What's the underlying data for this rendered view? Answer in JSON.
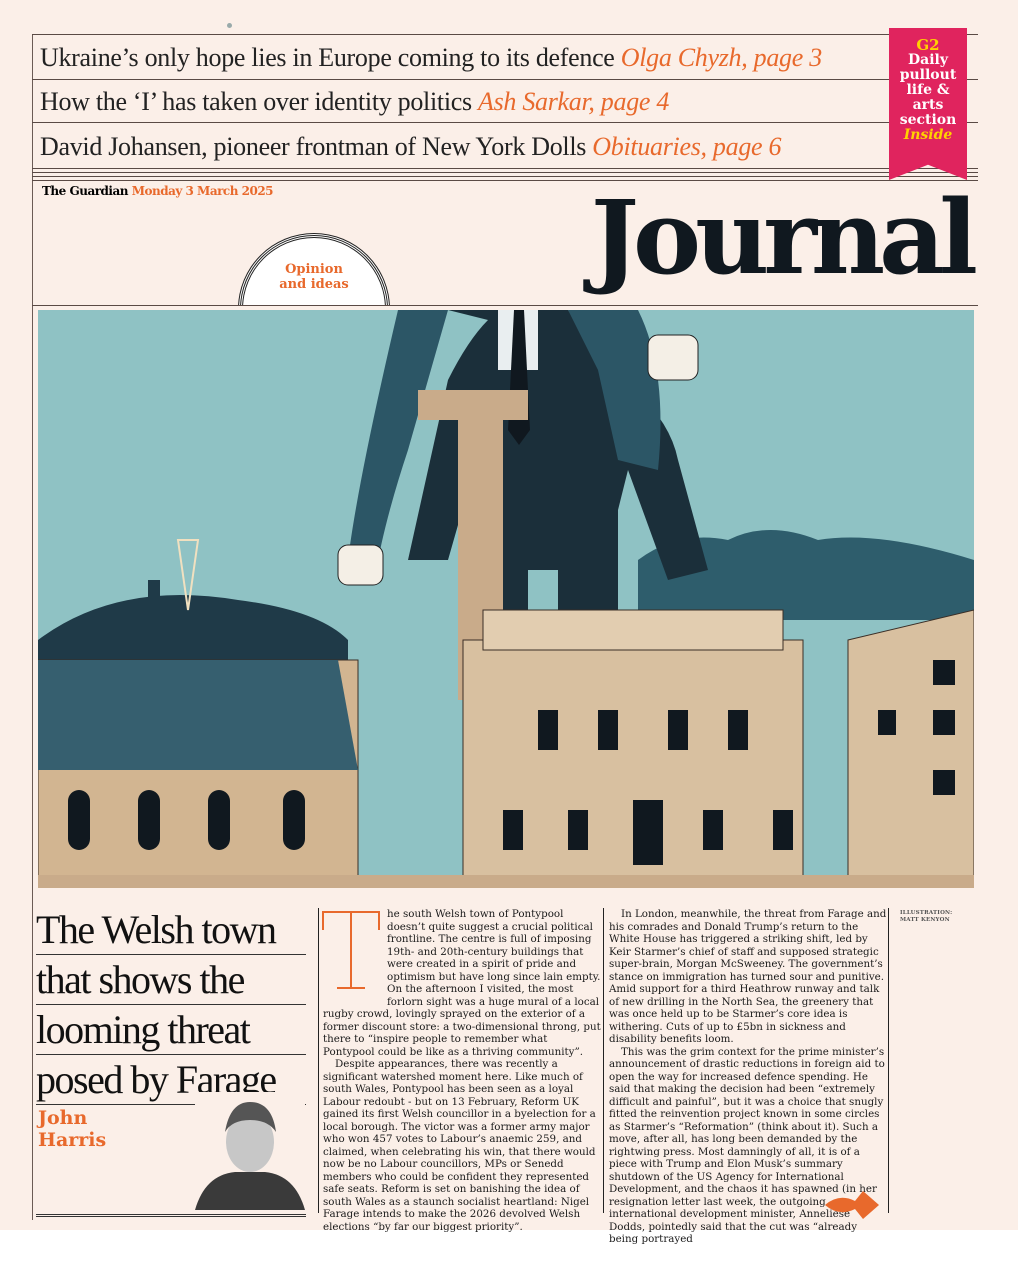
{
  "teasers": [
    {
      "text": "Ukraine’s only hope lies in Europe coming to its defence ",
      "ref": "Olga Chyzh, page 3"
    },
    {
      "text": "How the ‘I’ has taken over identity politics ",
      "ref": "Ash Sarkar, page 4"
    },
    {
      "text": "David Johansen, pioneer frontman of New York Dolls ",
      "ref": "Obituaries, page 6"
    }
  ],
  "ribbon": {
    "g2": "G2",
    "lines": [
      "Daily",
      "pullout",
      "life &",
      "arts",
      "section"
    ],
    "inside": "Inside",
    "color": "#e0245e"
  },
  "masthead": {
    "brand": "The Guardian",
    "date": "Monday 3 March 2025",
    "section_title": "Journal",
    "badge_line1": "Opinion",
    "badge_line2": "and ideas"
  },
  "article": {
    "headline": [
      "The Welsh town",
      "that shows the",
      "looming threat",
      "posed by Farage"
    ],
    "author": [
      "John",
      "Harris"
    ],
    "dropcap": "T",
    "col1": [
      "he south Welsh town of Pontypool doesn’t quite suggest a crucial political frontline. The centre is full of imposing 19th- and 20th-century buildings that were created in a spirit of pride and optimism but have long since lain empty. On the afternoon I visited, the most forlorn sight was a huge mural of a local rugby crowd, lovingly sprayed on the exterior of a former discount store: a two-dimensional throng, put there to “inspire people to remember what Pontypool could be like as a thriving community”.",
      "Despite appearances, there was recently a significant watershed moment here. Like much of south Wales, Pontypool has been seen as a loyal Labour redoubt - but on 13 February, Reform UK gained its first Welsh councillor in a byelection for a local borough. The victor was a former army major who won 457 votes to Labour’s anaemic 259, and claimed, when celebrating his win, that there would now be no Labour councillors, MPs or Senedd members who could be confident they represented safe seats. Reform is set on banishing the idea of south Wales as a staunch socialist heartland: Nigel Farage intends to make the 2026 devolved Welsh elections “by far our biggest priority”."
    ],
    "col2": [
      "In London, meanwhile, the threat from Farage and his comrades and Donald Trump’s return to the White House has triggered a striking shift, led by Keir Starmer’s chief of staff and supposed strategic super-brain, Morgan McSweeney. The government’s stance on immigration has turned sour and punitive. Amid support for a third Heathrow runway and talk of new drilling in the North Sea, the greenery that was once held up to be Starmer’s core idea is withering. Cuts of up to £5bn in sickness and disability benefits loom.",
      "This was the grim context for the prime minister’s announcement of drastic reductions in foreign aid to open the way for increased defence spending. He said that making the decision had been “extremely difficult and painful”, but it was a choice that snugly fitted the reinvention project known in some circles as Starmer’s “Reformation” (think about it). Such a move, after all, has long been demanded by the rightwing press. Most damningly of all, it is of a piece with Trump and Elon Musk’s summary shutdown of the US Agency for International Development, and the chaos it has spawned (in her resignation letter last week, the outgoing international development minister, Anneliese Dodds, pointedly said that the cut was “already being portrayed"
    ],
    "credit": [
      "ILLUSTRATION:",
      "MATT KENYON"
    ]
  },
  "colors": {
    "accent": "#e8692c",
    "paper": "#fbefe8",
    "ink": "#10181f",
    "sky": "#8fc2c4"
  }
}
